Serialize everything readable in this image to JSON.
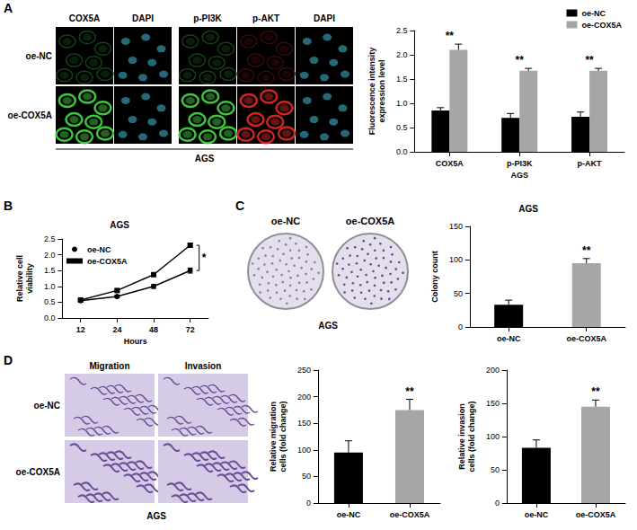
{
  "panel_letters": [
    "A",
    "B",
    "C",
    "D"
  ],
  "images": [
    {
      "columns": [
        "COX5A",
        "DAPI",
        "p-PI3K",
        "p-AKT",
        "DAPI"
      ],
      "rows": [
        "oe-NC",
        "oe-COX5A"
      ],
      "caption": "AGS"
    },
    {
      "columns": [
        "oe-NC",
        "oe-COX5A"
      ],
      "caption": "AGS"
    },
    {
      "columns": [
        "Migration",
        "Invasion"
      ],
      "rows": [
        "oe-NC",
        "oe-COX5A"
      ],
      "caption": "AGS"
    }
  ],
  "chart_data": [
    {
      "type": "bar",
      "categories": [
        "COX5A",
        "p-PI3K",
        "p-AKT"
      ],
      "series": [
        {
          "name": "oe-NC",
          "color": "#000000",
          "values": [
            0.85,
            0.7,
            0.72
          ],
          "errors": [
            0.06,
            0.09,
            0.1
          ]
        },
        {
          "name": "oe-COX5A",
          "color": "#a6a6a6",
          "values": [
            2.1,
            1.67,
            1.67
          ],
          "errors": [
            0.12,
            0.05,
            0.05
          ]
        }
      ],
      "x_label": "AGS",
      "y_label": "Fluorescence intensity expression level",
      "ylim": [
        0,
        2.5
      ],
      "yticks": [
        {
          "value": 0,
          "label": "0.0"
        },
        0.5,
        {
          "value": 1,
          "label": "1.0"
        },
        1.5,
        {
          "value": 2,
          "label": "2.0"
        },
        2.5
      ],
      "significance": [
        {
          "category": "COX5A",
          "text": "**"
        },
        {
          "category": "p-PI3K",
          "text": "**"
        },
        {
          "category": "p-AKT",
          "text": "**"
        }
      ],
      "legend": "upper right",
      "grid": false
    },
    {
      "type": "line",
      "title": "AGS",
      "categories": [
        "12",
        "24",
        "48",
        "72"
      ],
      "series": [
        {
          "name": "oe-NC",
          "color": "#000000",
          "marker": "circle",
          "line_style": "solid",
          "values": [
            0.55,
            0.68,
            1.0,
            1.5
          ],
          "errors": [
            0.03,
            0.04,
            0.06,
            0.08
          ]
        },
        {
          "name": "oe-COX5A",
          "color": "#000000",
          "marker": "square",
          "line_style": "solid",
          "values": [
            0.57,
            0.87,
            1.37,
            2.3
          ],
          "errors": [
            0.03,
            0.03,
            0.04,
            0.05
          ]
        }
      ],
      "x_label": "Hours",
      "y_label": "Relative cell viability",
      "ylim": [
        0,
        2.5
      ],
      "yticks": [
        {
          "value": 0,
          "label": "0.0"
        },
        0.5,
        {
          "value": 1,
          "label": "1.0"
        },
        1.5,
        {
          "value": 2,
          "label": "2.0"
        },
        2.5
      ],
      "significance": [
        {
          "category": "72",
          "text": "*"
        }
      ],
      "legend": "upper left",
      "grid": false
    },
    {
      "type": "bar",
      "title": "AGS",
      "categories": [
        "oe-NC",
        "oe-COX5A"
      ],
      "values": [
        33,
        95
      ],
      "errors": [
        7,
        7
      ],
      "colors": [
        "#000000",
        "#a6a6a6"
      ],
      "y_label": "Colony count",
      "ylim": [
        0,
        150
      ],
      "yticks": [
        0,
        50,
        100,
        150
      ],
      "significance": [
        {
          "category": "oe-COX5A",
          "text": "**"
        }
      ],
      "grid": false
    },
    {
      "type": "bar",
      "categories": [
        "oe-NC",
        "oe-COX5A"
      ],
      "values": [
        95,
        175
      ],
      "errors": [
        22,
        20
      ],
      "colors": [
        "#000000",
        "#a6a6a6"
      ],
      "y_label": "Relative migration cells (fold change)",
      "ylim": [
        0,
        250
      ],
      "yticks": [
        0,
        50,
        100,
        150,
        200,
        250
      ],
      "significance": [
        {
          "category": "oe-COX5A",
          "text": "**"
        }
      ],
      "grid": false
    },
    {
      "type": "bar",
      "categories": [
        "oe-NC",
        "oe-COX5A"
      ],
      "values": [
        83,
        145
      ],
      "errors": [
        12,
        10
      ],
      "colors": [
        "#000000",
        "#a6a6a6"
      ],
      "y_label": "Relative invasion cells (fold change)",
      "ylim": [
        0,
        200
      ],
      "yticks": [
        0,
        50,
        100,
        150,
        200
      ],
      "significance": [
        {
          "category": "oe-COX5A",
          "text": "**"
        }
      ],
      "grid": false
    }
  ]
}
